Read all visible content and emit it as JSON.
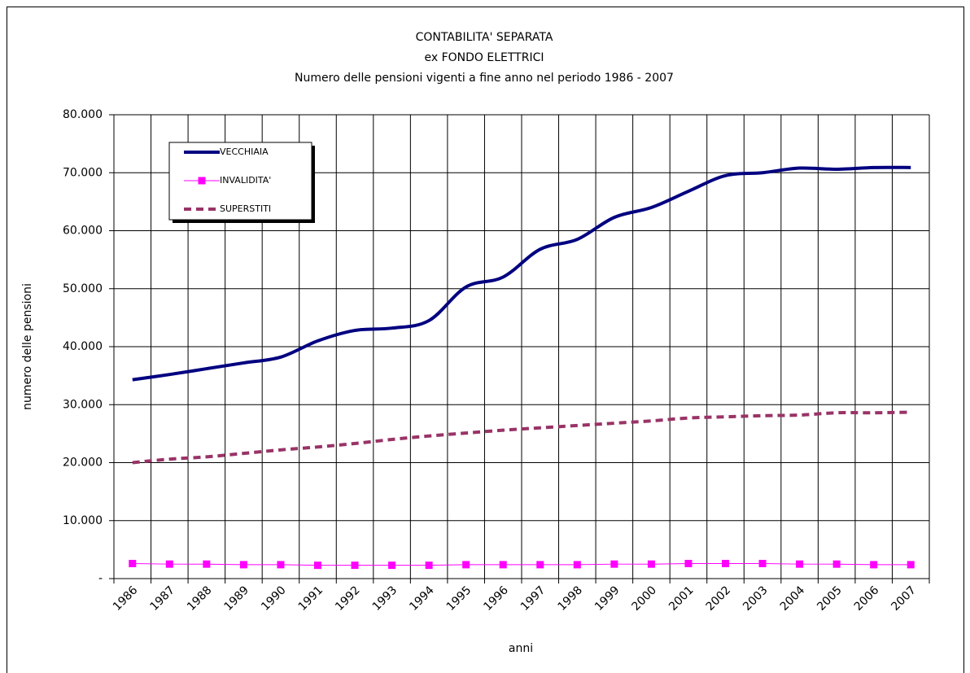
{
  "chart_data": {
    "type": "line",
    "title": [
      "CONTABILITA' SEPARATA",
      "ex FONDO ELETTRICI",
      "Numero delle pensioni vigenti a fine anno nel periodo 1986 - 2007"
    ],
    "x_label": "anni",
    "y_label": "numero delle pensioni",
    "categories": [
      "1986",
      "1987",
      "1988",
      "1989",
      "1990",
      "1991",
      "1992",
      "1993",
      "1994",
      "1995",
      "1996",
      "1997",
      "1998",
      "1999",
      "2000",
      "2001",
      "2002",
      "2003",
      "2004",
      "2005",
      "2006",
      "2007"
    ],
    "series": [
      {
        "name": "VECCHIAIA",
        "color": "#000080",
        "line_style": "solid",
        "smooth": true,
        "values": [
          34300,
          35200,
          36200,
          37200,
          38200,
          41000,
          42800,
          43200,
          44500,
          50300,
          52000,
          56800,
          58500,
          62300,
          64000,
          66800,
          69500,
          70000,
          70800,
          70600,
          70900,
          70900
        ]
      },
      {
        "name": "INVALIDITA'",
        "color": "#ff00ff",
        "line_style": "thin",
        "marker": "square",
        "smooth": false,
        "values": [
          2600,
          2500,
          2500,
          2400,
          2400,
          2300,
          2300,
          2300,
          2300,
          2400,
          2400,
          2400,
          2400,
          2500,
          2500,
          2600,
          2600,
          2600,
          2500,
          2500,
          2400,
          2400
        ]
      },
      {
        "name": "SUPERSTITI",
        "color": "#993366",
        "line_style": "dashed",
        "smooth": true,
        "values": [
          20000,
          20600,
          21000,
          21600,
          22200,
          22700,
          23300,
          24000,
          24600,
          25100,
          25600,
          26000,
          26400,
          26800,
          27200,
          27700,
          27900,
          28100,
          28200,
          28600,
          28600,
          28700
        ]
      }
    ],
    "ylim": [
      0,
      80000
    ],
    "yticks": [
      {
        "value": 0,
        "label": "-"
      },
      {
        "value": 10000,
        "label": "10.000"
      },
      {
        "value": 20000,
        "label": "20.000"
      },
      {
        "value": 30000,
        "label": "30.000"
      },
      {
        "value": 40000,
        "label": "40.000"
      },
      {
        "value": 50000,
        "label": "50.000"
      },
      {
        "value": 60000,
        "label": "60.000"
      },
      {
        "value": 70000,
        "label": "70.000"
      },
      {
        "value": 80000,
        "label": "80.000"
      }
    ],
    "grid": true
  }
}
